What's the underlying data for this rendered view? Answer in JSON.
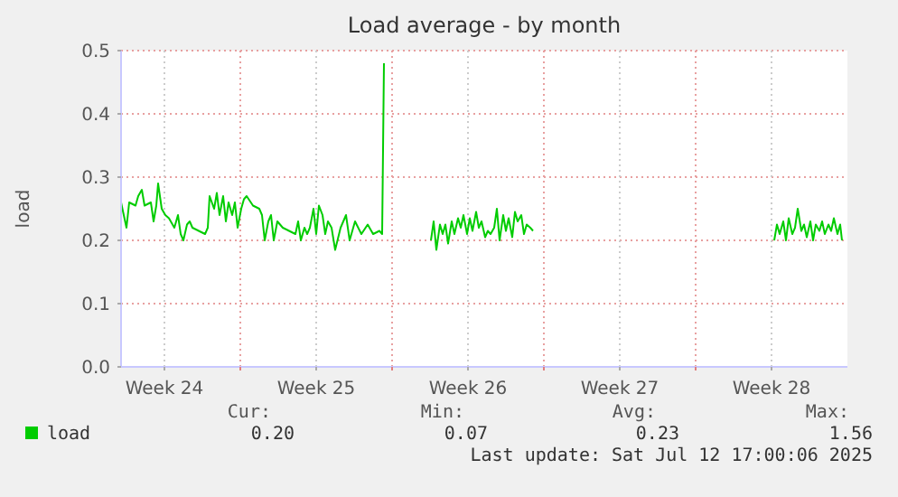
{
  "chart_data": {
    "type": "line",
    "title": "Load average - by month",
    "ylabel": "load",
    "x": [
      "2025-06-10T12:00",
      "2025-06-10T18:00",
      "2025-06-10T21:00",
      "2025-06-11T04:00",
      "2025-06-11T07:00",
      "2025-06-11T11:00",
      "2025-06-11T14:00",
      "2025-06-11T21:00",
      "2025-06-12T00:00",
      "2025-06-12T03:00",
      "2025-06-12T05:00",
      "2025-06-12T09:00",
      "2025-06-12T13:00",
      "2025-06-12T17:00",
      "2025-06-12T23:00",
      "2025-06-13T03:00",
      "2025-06-13T06:00",
      "2025-06-13T09:00",
      "2025-06-13T13:00",
      "2025-06-13T16:00",
      "2025-06-13T19:00",
      "2025-06-14T02:00",
      "2025-06-14T09:00",
      "2025-06-14T12:00",
      "2025-06-14T14:00",
      "2025-06-14T19:00",
      "2025-06-14T22:00",
      "2025-06-15T01:00",
      "2025-06-15T05:00",
      "2025-06-15T08:00",
      "2025-06-15T11:00",
      "2025-06-15T15:00",
      "2025-06-15T18:00",
      "2025-06-15T21:00",
      "2025-06-16T01:00",
      "2025-06-16T04:00",
      "2025-06-16T07:00",
      "2025-06-16T14:00",
      "2025-06-16T21:00",
      "2025-06-17T00:00",
      "2025-06-17T03:00",
      "2025-06-17T07:00",
      "2025-06-17T10:00",
      "2025-06-17T13:00",
      "2025-06-17T17:00",
      "2025-06-17T23:00",
      "2025-06-18T06:00",
      "2025-06-18T13:00",
      "2025-06-18T16:00",
      "2025-06-18T19:00",
      "2025-06-18T23:00",
      "2025-06-19T02:00",
      "2025-06-19T05:00",
      "2025-06-19T09:00",
      "2025-06-19T12:00",
      "2025-06-19T15:00",
      "2025-06-19T19:00",
      "2025-06-19T22:00",
      "2025-06-20T01:00",
      "2025-06-20T05:00",
      "2025-06-20T09:00",
      "2025-06-20T15:00",
      "2025-06-20T21:00",
      "2025-06-21T01:00",
      "2025-06-21T07:00",
      "2025-06-21T14:00",
      "2025-06-21T21:00",
      "2025-06-22T03:00",
      "2025-06-22T10:00",
      "2025-06-22T13:00",
      "2025-06-22T15:00",
      "2025-06-22T17:00",
      "2025-06-24T19:00",
      "2025-06-24T22:00",
      "2025-06-25T01:00",
      "2025-06-25T05:00",
      "2025-06-25T08:00",
      "2025-06-25T11:00",
      "2025-06-25T14:00",
      "2025-06-25T18:00",
      "2025-06-25T21:00",
      "2025-06-26T01:00",
      "2025-06-26T04:00",
      "2025-06-26T07:00",
      "2025-06-26T11:00",
      "2025-06-26T14:00",
      "2025-06-26T17:00",
      "2025-06-26T21:00",
      "2025-06-27T00:00",
      "2025-06-27T03:00",
      "2025-06-27T07:00",
      "2025-06-27T10:00",
      "2025-06-27T13:00",
      "2025-06-27T17:00",
      "2025-06-27T20:00",
      "2025-06-27T23:00",
      "2025-06-28T03:00",
      "2025-06-28T06:00",
      "2025-06-28T09:00",
      "2025-06-28T13:00",
      "2025-06-28T16:00",
      "2025-06-28T19:00",
      "2025-06-28T23:00",
      "2025-06-29T02:00",
      "2025-06-29T05:00",
      "2025-06-29T09:00",
      "2025-06-29T12:00",
      "2025-06-29T14:00",
      "2025-07-10T15:00",
      "2025-07-10T18:00",
      "2025-07-10T21:00",
      "2025-07-11T01:00",
      "2025-07-11T04:00",
      "2025-07-11T07:00",
      "2025-07-11T11:00",
      "2025-07-11T14:00",
      "2025-07-11T17:00",
      "2025-07-11T21:00",
      "2025-07-12T00:00",
      "2025-07-12T03:00",
      "2025-07-12T07:00",
      "2025-07-12T10:00",
      "2025-07-12T13:00",
      "2025-07-12T17:00",
      "2025-07-12T20:00",
      "2025-07-12T23:00",
      "2025-07-13T03:00",
      "2025-07-13T06:00",
      "2025-07-13T09:00",
      "2025-07-13T13:00",
      "2025-07-13T16:00",
      "2025-07-13T18:00"
    ],
    "series": [
      {
        "name": "load",
        "color": "#00cc00",
        "values": [
          0.26,
          0.22,
          0.26,
          0.255,
          0.27,
          0.28,
          0.255,
          0.26,
          0.23,
          0.255,
          0.29,
          0.25,
          0.24,
          0.235,
          0.22,
          0.24,
          0.21,
          0.2,
          0.225,
          0.23,
          0.22,
          0.215,
          0.21,
          0.22,
          0.27,
          0.25,
          0.275,
          0.24,
          0.27,
          0.23,
          0.26,
          0.24,
          0.26,
          0.22,
          0.25,
          0.265,
          0.27,
          0.255,
          0.25,
          0.24,
          0.2,
          0.23,
          0.24,
          0.2,
          0.23,
          0.22,
          0.215,
          0.21,
          0.23,
          0.2,
          0.22,
          0.21,
          0.22,
          0.25,
          0.21,
          0.255,
          0.24,
          0.21,
          0.23,
          0.22,
          0.185,
          0.22,
          0.24,
          0.2,
          0.23,
          0.21,
          0.225,
          0.21,
          0.215,
          0.21,
          0.48,
          null,
          0.2,
          0.23,
          0.185,
          0.225,
          0.21,
          0.225,
          0.195,
          0.23,
          0.21,
          0.235,
          0.22,
          0.24,
          0.21,
          0.235,
          0.215,
          0.245,
          0.22,
          0.23,
          0.205,
          0.215,
          0.21,
          0.22,
          0.25,
          0.2,
          0.24,
          0.215,
          0.235,
          0.205,
          0.245,
          0.23,
          0.24,
          0.21,
          0.225,
          0.22,
          0.215,
          null,
          0.2,
          0.225,
          0.21,
          0.23,
          0.2,
          0.235,
          0.21,
          0.22,
          0.25,
          0.215,
          0.225,
          0.205,
          0.23,
          0.2,
          0.225,
          0.215,
          0.23,
          0.21,
          0.225,
          0.215,
          0.235,
          0.21,
          0.225,
          0.2
        ]
      }
    ],
    "xlim": [
      "2025-06-10T12:00",
      "2025-07-14T00:00"
    ],
    "xticks": [
      {
        "value": "2025-06-12T12:00",
        "label": "Week 24"
      },
      {
        "value": "2025-06-16T00:00",
        "label": null
      },
      {
        "value": "2025-06-19T12:00",
        "label": "Week 25"
      },
      {
        "value": "2025-06-23T00:00",
        "label": null
      },
      {
        "value": "2025-06-26T12:00",
        "label": "Week 26"
      },
      {
        "value": "2025-06-30T00:00",
        "label": null
      },
      {
        "value": "2025-07-03T12:00",
        "label": "Week 27"
      },
      {
        "value": "2025-07-07T00:00",
        "label": null
      },
      {
        "value": "2025-07-10T12:00",
        "label": "Week 28"
      }
    ],
    "ylim": [
      0,
      0.5
    ],
    "yticks": [
      {
        "value": 0,
        "label": "0.0"
      },
      {
        "value": 0.1,
        "label": "0.1"
      },
      {
        "value": 0.2,
        "label": "0.2"
      },
      {
        "value": 0.3,
        "label": "0.3"
      },
      {
        "value": 0.4,
        "label": "0.4"
      },
      {
        "value": 0.5,
        "label": "0.5"
      }
    ],
    "grid": true,
    "legend": "bottom left",
    "annotations": [
      "Cur:",
      "Min:",
      "Avg:",
      "Max:",
      "0.20",
      "0.07",
      "0.23",
      "1.56",
      "Last update: Sat Jul 12 17:00:06 2025"
    ]
  }
}
